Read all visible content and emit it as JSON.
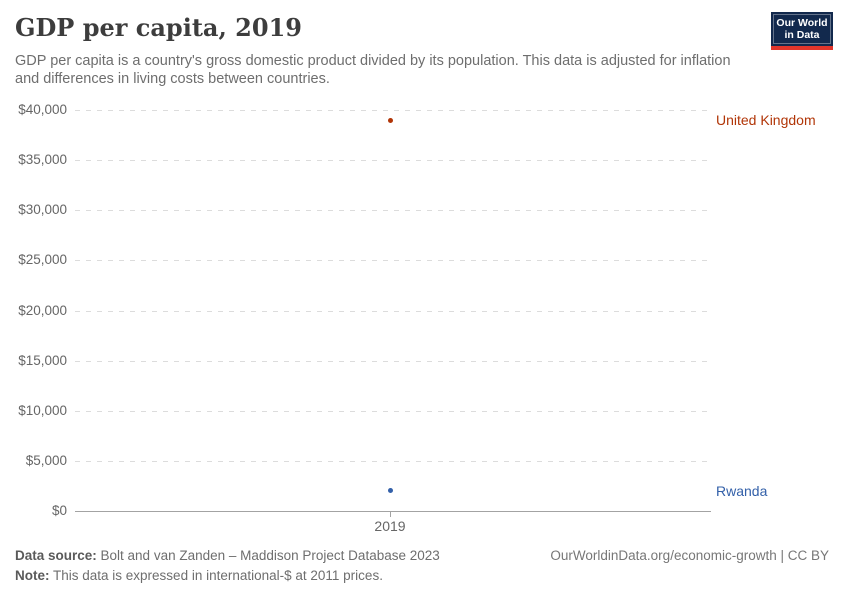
{
  "header": {
    "title": "GDP per capita, 2019",
    "subtitle": "GDP per capita is a country's gross domestic product divided by its population. This data is adjusted for inflation and differences in living costs between countries.",
    "logo": {
      "line1": "Our World",
      "line2": "in Data",
      "bg_color": "#12294D",
      "bar_color": "#E2362B"
    }
  },
  "chart_data": {
    "type": "scatter",
    "title": "GDP per capita, 2019",
    "x": [
      2019
    ],
    "x_tick_label": "2019",
    "xlabel": "",
    "ylabel": "",
    "ylim": [
      0,
      40000
    ],
    "ytick_interval": 5000,
    "ytick_labels": [
      "$0",
      "$5,000",
      "$10,000",
      "$15,000",
      "$20,000",
      "$25,000",
      "$30,000",
      "$35,000",
      "$40,000"
    ],
    "grid": "horizontal dashed, solid zero baseline",
    "legend_position": "entity labels at right of points",
    "series": [
      {
        "name": "United Kingdom",
        "x": 2019,
        "value": 39000,
        "color": "#B13507"
      },
      {
        "name": "Rwanda",
        "x": 2019,
        "value": 2000,
        "color": "#3360A9"
      }
    ]
  },
  "footer": {
    "datasource_label": "Data source:",
    "datasource_text": " Bolt and van Zanden – Maddison Project Database 2023",
    "note_label": "Note:",
    "note_text": " This data is expressed in international-$ at 2011 prices.",
    "rights": "OurWorldinData.org/economic-growth | CC BY"
  }
}
